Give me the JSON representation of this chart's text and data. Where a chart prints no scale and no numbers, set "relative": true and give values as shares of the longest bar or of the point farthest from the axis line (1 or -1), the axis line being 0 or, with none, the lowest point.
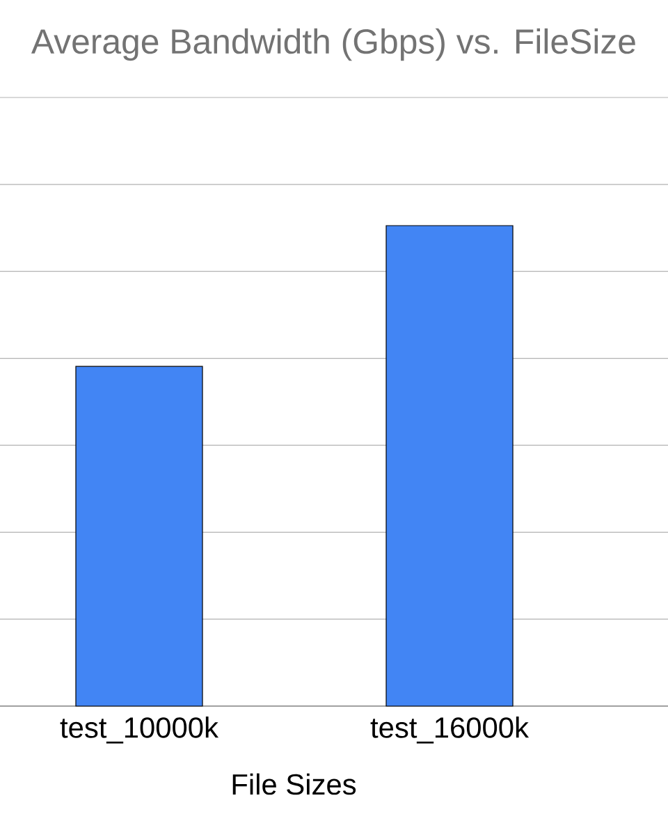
{
  "chart_data": {
    "type": "bar",
    "title": "Average Bandwidth (Gbps) vs. FileSize",
    "xlabel": "File Sizes",
    "categories": [
      "test_10000k",
      "test_16000k"
    ],
    "values": [
      0.707,
      1
    ],
    "color": "#4285f4",
    "relative": true,
    "grid": true
  }
}
